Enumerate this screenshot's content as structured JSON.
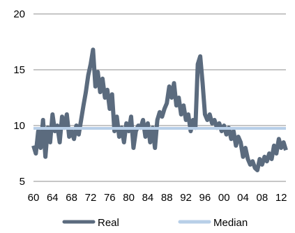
{
  "chart_data": {
    "type": "line",
    "title": "",
    "xlabel": "",
    "ylabel": "",
    "xlim": [
      1960,
      2013
    ],
    "ylim": [
      5,
      20
    ],
    "y_ticks": [
      5,
      10,
      15,
      20
    ],
    "x_tick_labels": [
      "60",
      "64",
      "68",
      "72",
      "76",
      "80",
      "84",
      "88",
      "92",
      "96",
      "00",
      "04",
      "08",
      "12"
    ],
    "x_tick_values": [
      1960,
      1964,
      1968,
      1972,
      1976,
      1980,
      1984,
      1988,
      1992,
      1996,
      2000,
      2004,
      2008,
      2012
    ],
    "grid": "horizontal",
    "legend": {
      "placement": "bottom",
      "entries": [
        "Real",
        "Median"
      ]
    },
    "series": [
      {
        "name": "Real",
        "color": "#5b6b7e",
        "x": [
          1960.0,
          1960.5,
          1961.0,
          1961.5,
          1962.0,
          1962.5,
          1963.0,
          1963.5,
          1964.0,
          1964.5,
          1965.0,
          1965.5,
          1966.0,
          1966.5,
          1967.0,
          1967.5,
          1968.0,
          1968.5,
          1969.0,
          1969.5,
          1970.0,
          1970.5,
          1971.0,
          1971.5,
          1972.0,
          1972.5,
          1973.0,
          1973.5,
          1974.0,
          1974.5,
          1975.0,
          1975.5,
          1976.0,
          1976.5,
          1977.0,
          1977.5,
          1978.0,
          1978.5,
          1979.0,
          1979.5,
          1980.0,
          1980.5,
          1981.0,
          1981.5,
          1982.0,
          1982.5,
          1983.0,
          1983.5,
          1984.0,
          1984.5,
          1985.0,
          1985.5,
          1986.0,
          1986.5,
          1987.0,
          1987.5,
          1988.0,
          1988.5,
          1989.0,
          1989.5,
          1990.0,
          1990.5,
          1991.0,
          1991.5,
          1992.0,
          1992.5,
          1993.0,
          1993.5,
          1994.0,
          1994.5,
          1995.0,
          1995.5,
          1996.0,
          1996.5,
          1997.0,
          1997.5,
          1998.0,
          1998.5,
          1999.0,
          1999.5,
          2000.0,
          2000.5,
          2001.0,
          2001.5,
          2002.0,
          2002.5,
          2003.0,
          2003.5,
          2004.0,
          2004.5,
          2005.0,
          2005.5,
          2006.0,
          2006.5,
          2007.0,
          2007.5,
          2008.0,
          2008.5,
          2009.0,
          2009.5,
          2010.0,
          2010.5,
          2011.0,
          2011.5,
          2012.0,
          2012.5,
          2013.0
        ],
        "values": [
          8.2,
          7.5,
          9.5,
          8.0,
          10.5,
          7.2,
          9.8,
          8.5,
          11.0,
          9.5,
          10.0,
          8.5,
          10.8,
          9.8,
          11.0,
          9.0,
          9.5,
          8.8,
          10.0,
          9.2,
          10.5,
          11.8,
          13.0,
          14.5,
          15.5,
          16.8,
          13.5,
          14.8,
          13.0,
          14.2,
          12.5,
          13.2,
          11.5,
          12.8,
          9.5,
          10.8,
          9.0,
          9.8,
          8.5,
          10.2,
          9.5,
          10.8,
          8.0,
          9.5,
          10.0,
          9.8,
          10.5,
          9.0,
          10.2,
          8.5,
          9.8,
          8.0,
          10.5,
          11.2,
          10.8,
          11.5,
          12.0,
          13.5,
          12.5,
          13.8,
          11.8,
          12.5,
          11.0,
          11.8,
          10.5,
          11.0,
          9.5,
          10.5,
          9.8,
          15.5,
          16.2,
          13.8,
          11.0,
          10.5,
          11.0,
          10.2,
          10.5,
          9.8,
          10.2,
          9.5,
          10.0,
          9.2,
          9.8,
          8.8,
          9.5,
          8.2,
          9.0,
          8.5,
          7.2,
          8.0,
          7.0,
          6.5,
          6.8,
          6.2,
          6.0,
          7.0,
          6.5,
          7.2,
          6.8,
          7.5,
          7.0,
          8.2,
          7.5,
          8.8,
          8.0,
          8.5,
          7.8
        ]
      },
      {
        "name": "Median",
        "color": "#b8cfe8",
        "x": [
          1960,
          2013
        ],
        "values": [
          9.75,
          9.75
        ]
      }
    ]
  }
}
